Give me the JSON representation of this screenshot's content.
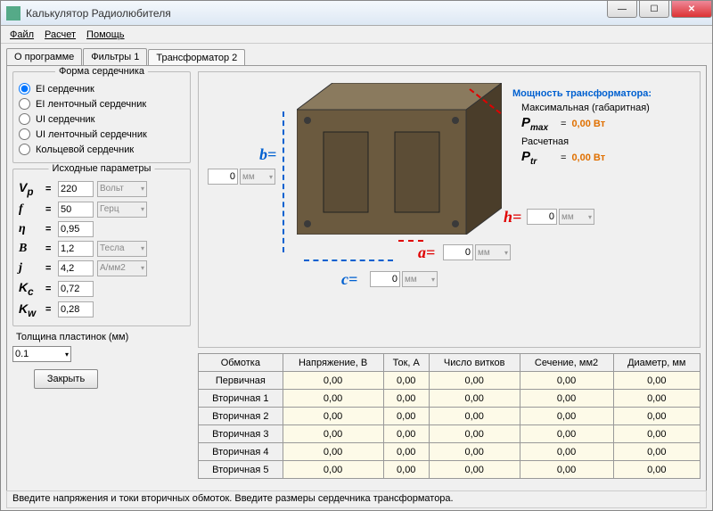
{
  "window": {
    "title": "Калькулятор Радиолюбителя"
  },
  "menubar": {
    "file": "Файл",
    "calc": "Расчет",
    "help": "Помощь"
  },
  "tabs": {
    "t0": "О программе",
    "t1": "Фильтры 1",
    "t2": "Трансформатор 2"
  },
  "core_shape": {
    "title": "Форма сердечника",
    "r0": "EI сердечник",
    "r1": "EI ленточный сердечник",
    "r2": "UI сердечник",
    "r3": "UI ленточный сердечник",
    "r4": "Кольцевой сердечник"
  },
  "params": {
    "title": "Исходные параметры",
    "vp": {
      "label": "V",
      "sub": "p",
      "value": "220",
      "unit": "Вольт"
    },
    "f": {
      "label": "f",
      "value": "50",
      "unit": "Герц"
    },
    "eta": {
      "label": "η",
      "value": "0,95"
    },
    "b": {
      "label": "B",
      "value": "1,2",
      "unit": "Тесла"
    },
    "j": {
      "label": "j",
      "value": "4,2",
      "unit": "А/мм2"
    },
    "kc": {
      "label": "K",
      "sub": "c",
      "value": "0,72"
    },
    "kw": {
      "label": "K",
      "sub": "w",
      "value": "0,28"
    }
  },
  "plate": {
    "label": "Толщина пластинок (мм)",
    "value": "0.1"
  },
  "close_btn": "Закрыть",
  "dims": {
    "b": {
      "label": "b=",
      "value": "0",
      "unit": "мм"
    },
    "a": {
      "label": "a=",
      "value": "0",
      "unit": "мм"
    },
    "c": {
      "label": "c=",
      "value": "0",
      "unit": "мм"
    },
    "h": {
      "label": "h=",
      "value": "0",
      "unit": "мм"
    }
  },
  "power": {
    "title": "Мощность трансформатора:",
    "max_label": "Максимальная (габаритная)",
    "pmax_sym": "P",
    "pmax_sub": "max",
    "pmax_val": "0,00 Вт",
    "calc_label": "Расчетная",
    "ptr_sym": "P",
    "ptr_sub": "tr",
    "ptr_val": "0,00 Вт"
  },
  "table": {
    "h_winding": "Обмотка",
    "h_voltage": "Напряжение, В",
    "h_current": "Ток, А",
    "h_turns": "Число витков",
    "h_section": "Сечение, мм2",
    "h_diameter": "Диаметр, мм",
    "rows": {
      "r0": "Первичная",
      "r1": "Вторичная 1",
      "r2": "Вторичная 2",
      "r3": "Вторичная 3",
      "r4": "Вторичная 4",
      "r5": "Вторичная 5"
    },
    "zero": "0,00"
  },
  "status": "Введите напряжения и токи вторичных обмоток. Введите размеры сердечника трансформатора.",
  "colors": {
    "core_front": "#6b5a3f",
    "core_side": "#4a3d2a",
    "core_top": "#8a7a5e",
    "arrow_blue": "#0060d0",
    "arrow_red": "#e00000"
  }
}
